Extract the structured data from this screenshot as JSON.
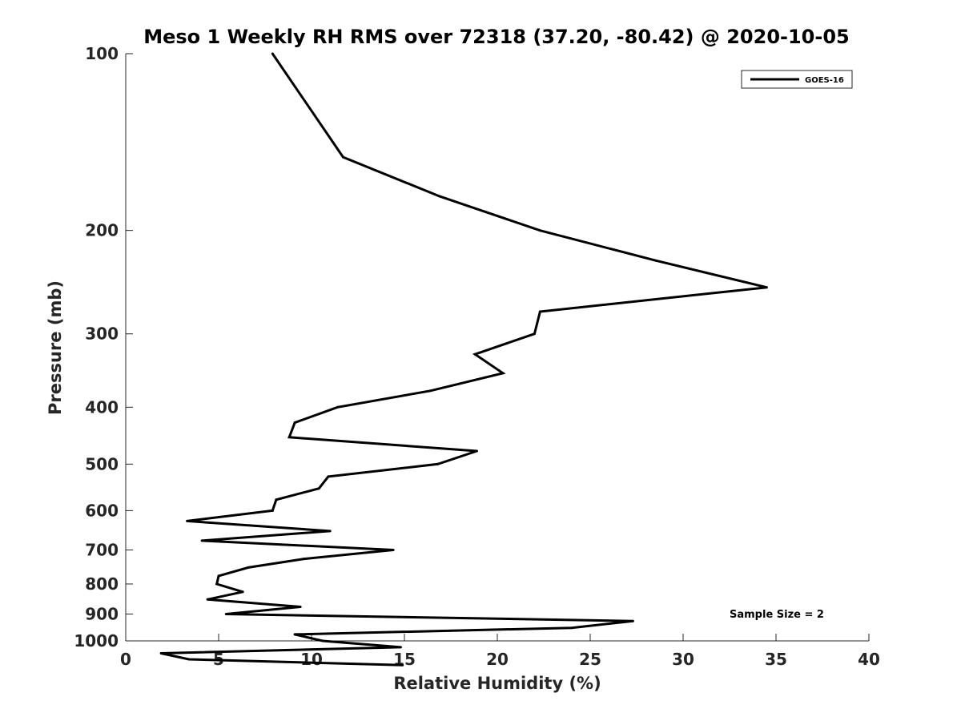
{
  "chart_data": {
    "type": "line",
    "title": "Meso 1 Weekly RH RMS over 72318 (37.20, -80.42) @ 2020-10-05",
    "xlabel": "Relative Humidity (%)",
    "ylabel": "Pressure (mb)",
    "xlim": [
      0,
      40
    ],
    "ylim": [
      100,
      1000
    ],
    "y_scale": "log",
    "y_reversed": true,
    "x_ticks": [
      0,
      5,
      10,
      15,
      20,
      25,
      30,
      35,
      40
    ],
    "y_ticks": [
      100,
      200,
      300,
      400,
      500,
      600,
      700,
      800,
      900,
      1000
    ],
    "grid": false,
    "legend_position": "top-right",
    "annotation": "Sample Size = 2",
    "series": [
      {
        "name": "GOES-16",
        "color": "#000000",
        "points": [
          {
            "x": 7.9,
            "p": 100
          },
          {
            "x": 11.7,
            "p": 150
          },
          {
            "x": 16.9,
            "p": 175
          },
          {
            "x": 22.3,
            "p": 200
          },
          {
            "x": 28.5,
            "p": 225
          },
          {
            "x": 34.5,
            "p": 250
          },
          {
            "x": 22.3,
            "p": 275
          },
          {
            "x": 22.0,
            "p": 300
          },
          {
            "x": 18.8,
            "p": 325
          },
          {
            "x": 20.3,
            "p": 350
          },
          {
            "x": 16.4,
            "p": 375
          },
          {
            "x": 11.4,
            "p": 400
          },
          {
            "x": 9.1,
            "p": 425
          },
          {
            "x": 8.8,
            "p": 450
          },
          {
            "x": 18.9,
            "p": 475
          },
          {
            "x": 16.8,
            "p": 500
          },
          {
            "x": 10.9,
            "p": 525
          },
          {
            "x": 10.4,
            "p": 550
          },
          {
            "x": 8.1,
            "p": 575
          },
          {
            "x": 7.9,
            "p": 600
          },
          {
            "x": 3.3,
            "p": 625
          },
          {
            "x": 11.0,
            "p": 650
          },
          {
            "x": 4.1,
            "p": 675
          },
          {
            "x": 14.4,
            "p": 700
          },
          {
            "x": 9.6,
            "p": 725
          },
          {
            "x": 6.6,
            "p": 750
          },
          {
            "x": 5.0,
            "p": 775
          },
          {
            "x": 4.9,
            "p": 800
          },
          {
            "x": 6.3,
            "p": 825
          },
          {
            "x": 4.4,
            "p": 850
          },
          {
            "x": 9.4,
            "p": 875
          },
          {
            "x": 5.4,
            "p": 900
          },
          {
            "x": 27.3,
            "p": 925
          },
          {
            "x": 24.0,
            "p": 950
          },
          {
            "x": 9.1,
            "p": 975
          },
          {
            "x": 10.6,
            "p": 1000
          },
          {
            "x": 14.8,
            "p": 1025
          },
          {
            "x": 1.9,
            "p": 1050
          },
          {
            "x": 3.4,
            "p": 1075
          },
          {
            "x": 14.9,
            "p": 1100
          }
        ]
      }
    ]
  }
}
